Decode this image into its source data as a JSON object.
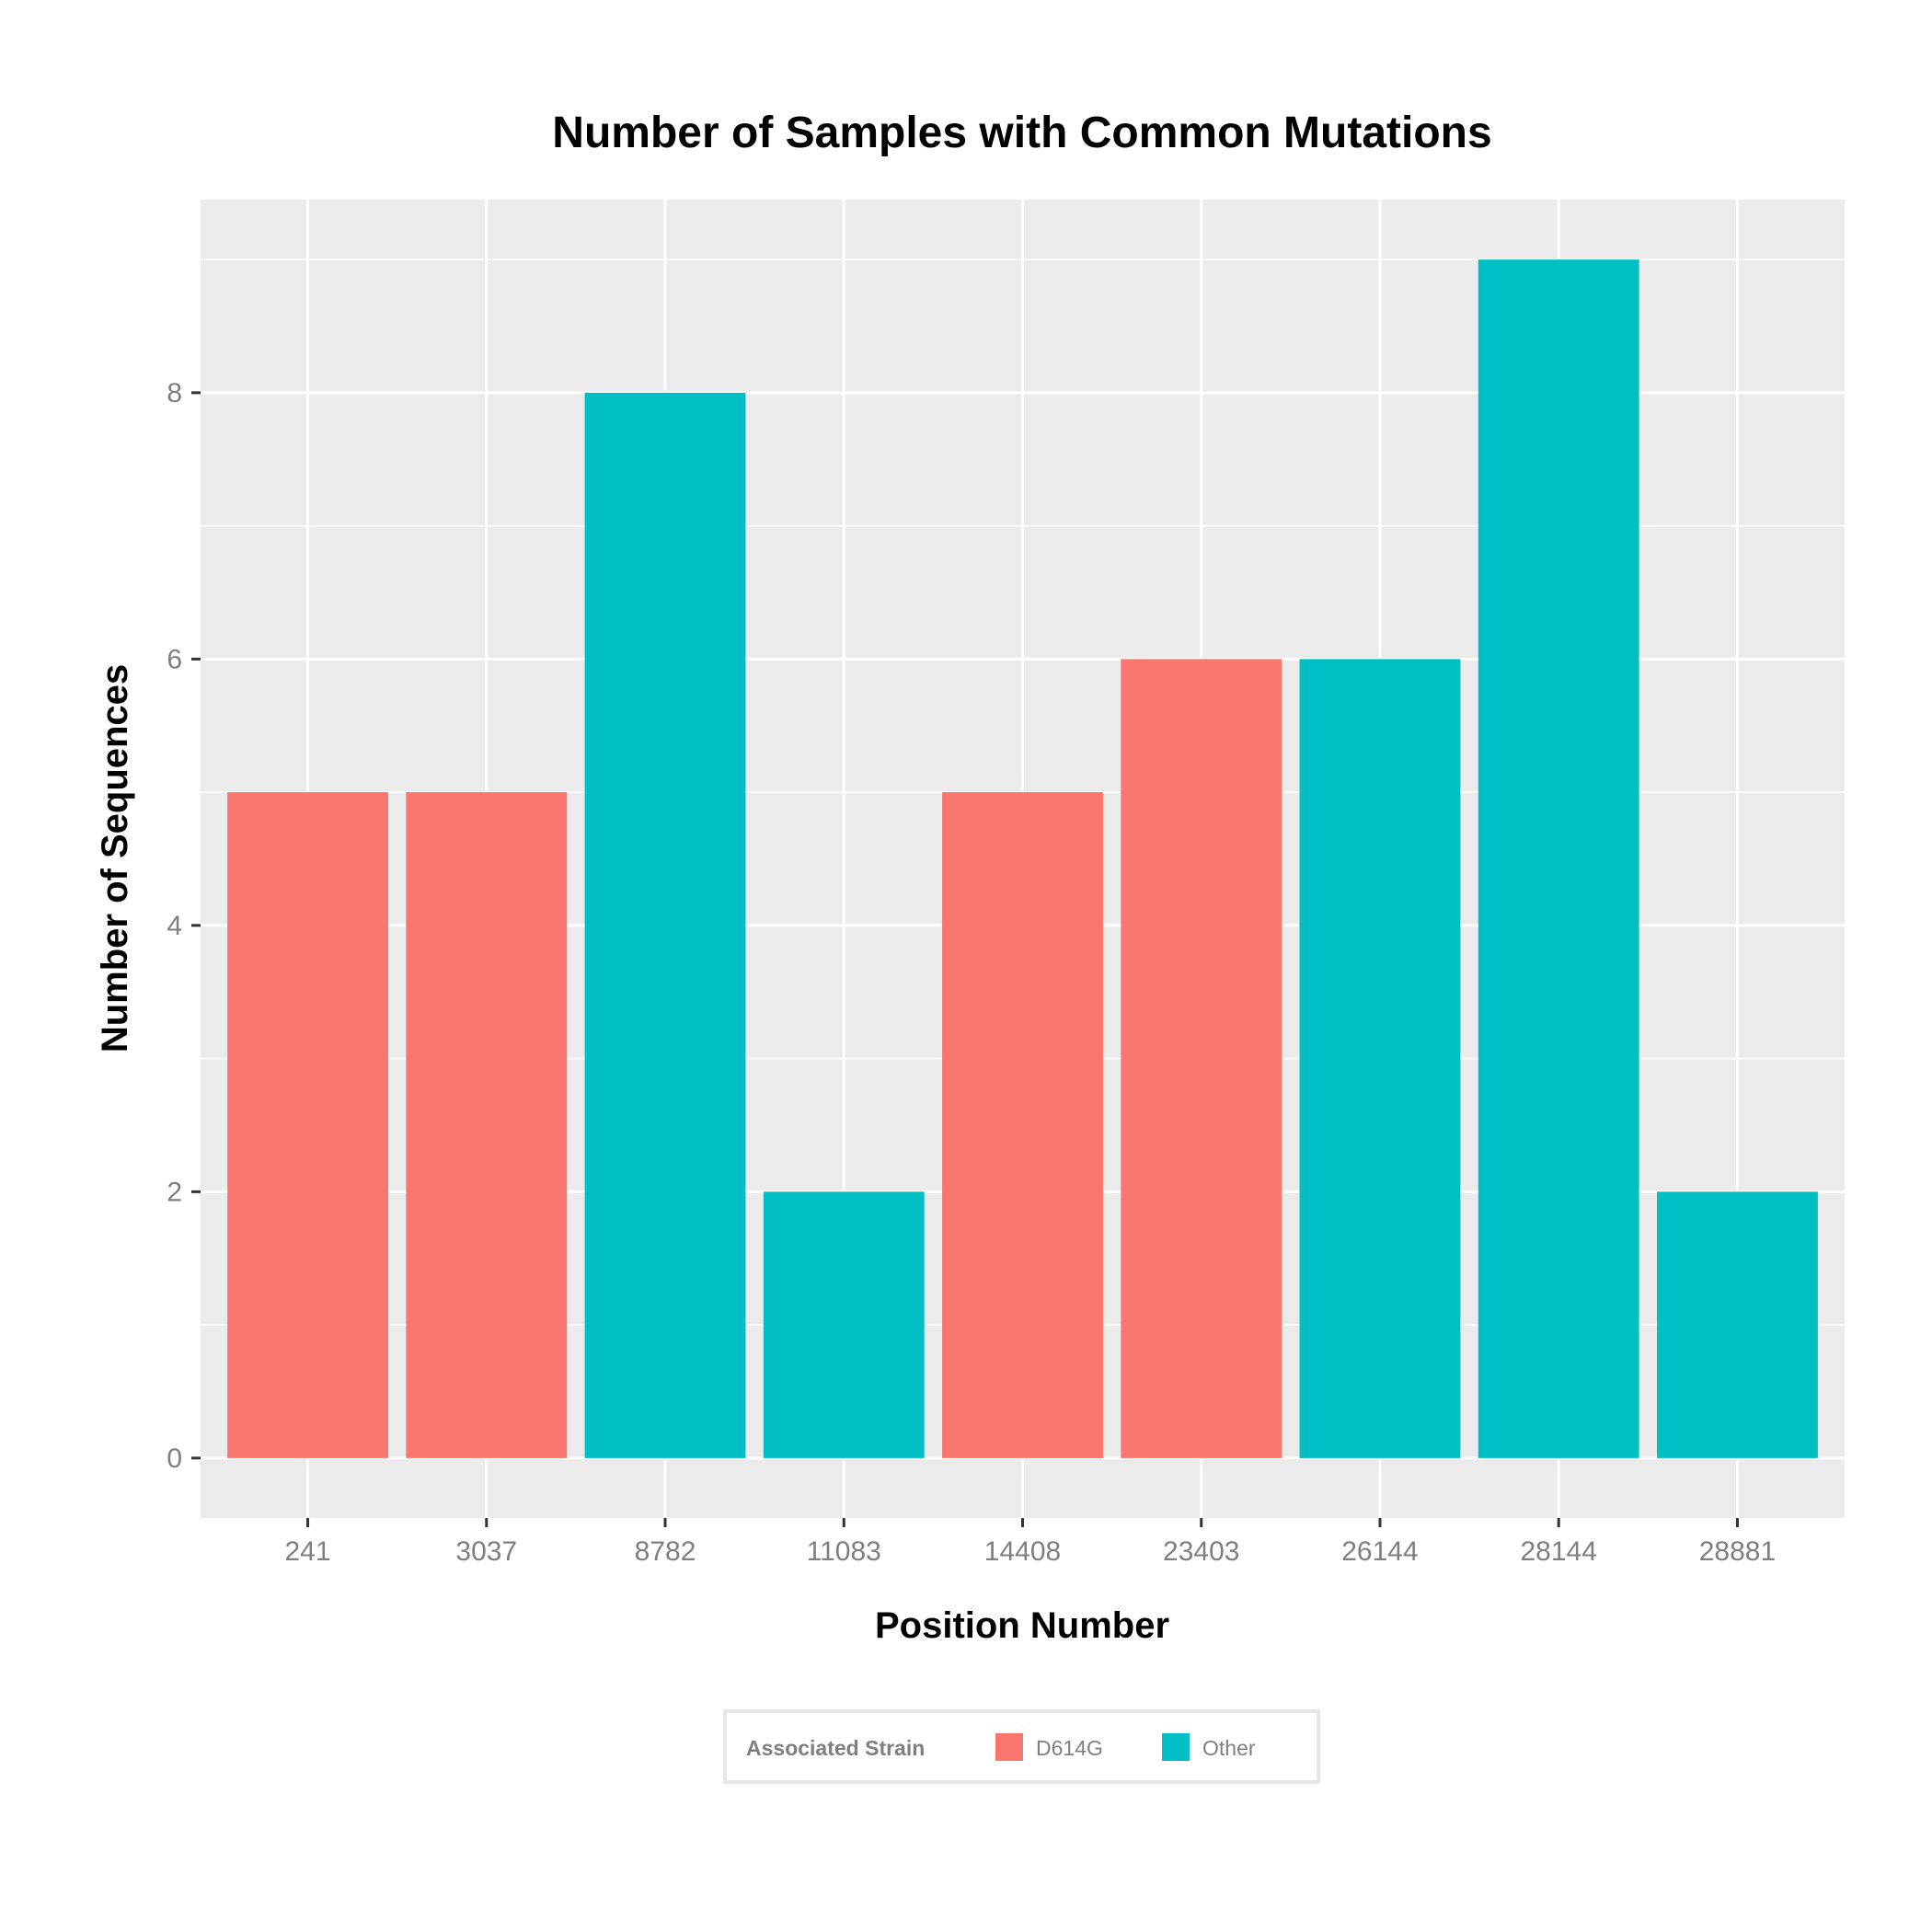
{
  "chart_data": {
    "type": "bar",
    "title": "Number of Samples with Common Mutations",
    "xlabel": "Position Number",
    "ylabel": "Number of Sequences",
    "categories": [
      "241",
      "3037",
      "8782",
      "11083",
      "14408",
      "23403",
      "26144",
      "28144",
      "28881"
    ],
    "values": [
      5,
      5,
      8,
      2,
      5,
      6,
      6,
      9,
      2
    ],
    "groups": [
      "D614G",
      "D614G",
      "Other",
      "Other",
      "D614G",
      "D614G",
      "Other",
      "Other",
      "Other"
    ],
    "yticks": [
      0,
      2,
      4,
      6,
      8
    ],
    "ylim": [
      -0.45,
      9.45
    ],
    "grid": true,
    "legend": {
      "title": "Associated Strain",
      "position": "bottom",
      "entries": [
        {
          "label": "D614G",
          "color": "#F8766D"
        },
        {
          "label": "Other",
          "color": "#00BFC4"
        }
      ]
    },
    "colors": {
      "D614G": "#F8766D",
      "Other": "#00BFC4",
      "panel": "#EBEBEB",
      "grid": "#FFFFFF"
    }
  }
}
